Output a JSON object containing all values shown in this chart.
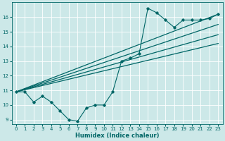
{
  "xlabel": "Humidex (Indice chaleur)",
  "bg_color": "#cce8e8",
  "grid_color": "#ffffff",
  "line_color": "#006666",
  "xlim": [
    -0.5,
    23.5
  ],
  "ylim": [
    8.7,
    17.0
  ],
  "xticks": [
    0,
    1,
    2,
    3,
    4,
    5,
    6,
    7,
    8,
    9,
    10,
    11,
    12,
    13,
    14,
    15,
    16,
    17,
    18,
    19,
    20,
    21,
    22,
    23
  ],
  "yticks": [
    9,
    10,
    11,
    12,
    13,
    14,
    15,
    16
  ],
  "jagged_x": [
    0,
    1,
    2,
    3,
    4,
    5,
    6,
    7,
    8,
    9,
    10,
    11,
    12,
    13,
    14,
    15,
    16,
    17,
    18,
    19,
    20,
    21,
    22,
    23
  ],
  "jagged_y": [
    10.9,
    10.9,
    10.2,
    10.6,
    10.2,
    9.6,
    9.0,
    8.9,
    9.8,
    10.0,
    10.0,
    10.9,
    13.0,
    13.2,
    13.5,
    16.6,
    16.3,
    15.8,
    15.3,
    15.8,
    15.8,
    15.8,
    15.9,
    16.2
  ],
  "trend1_x": [
    0,
    23
  ],
  "trend1_y": [
    10.9,
    16.2
  ],
  "trend2_x": [
    0,
    23
  ],
  "trend2_y": [
    10.9,
    15.5
  ],
  "trend3_x": [
    0,
    23
  ],
  "trend3_y": [
    10.9,
    14.8
  ],
  "trend4_x": [
    0,
    23
  ],
  "trend4_y": [
    10.9,
    14.2
  ]
}
